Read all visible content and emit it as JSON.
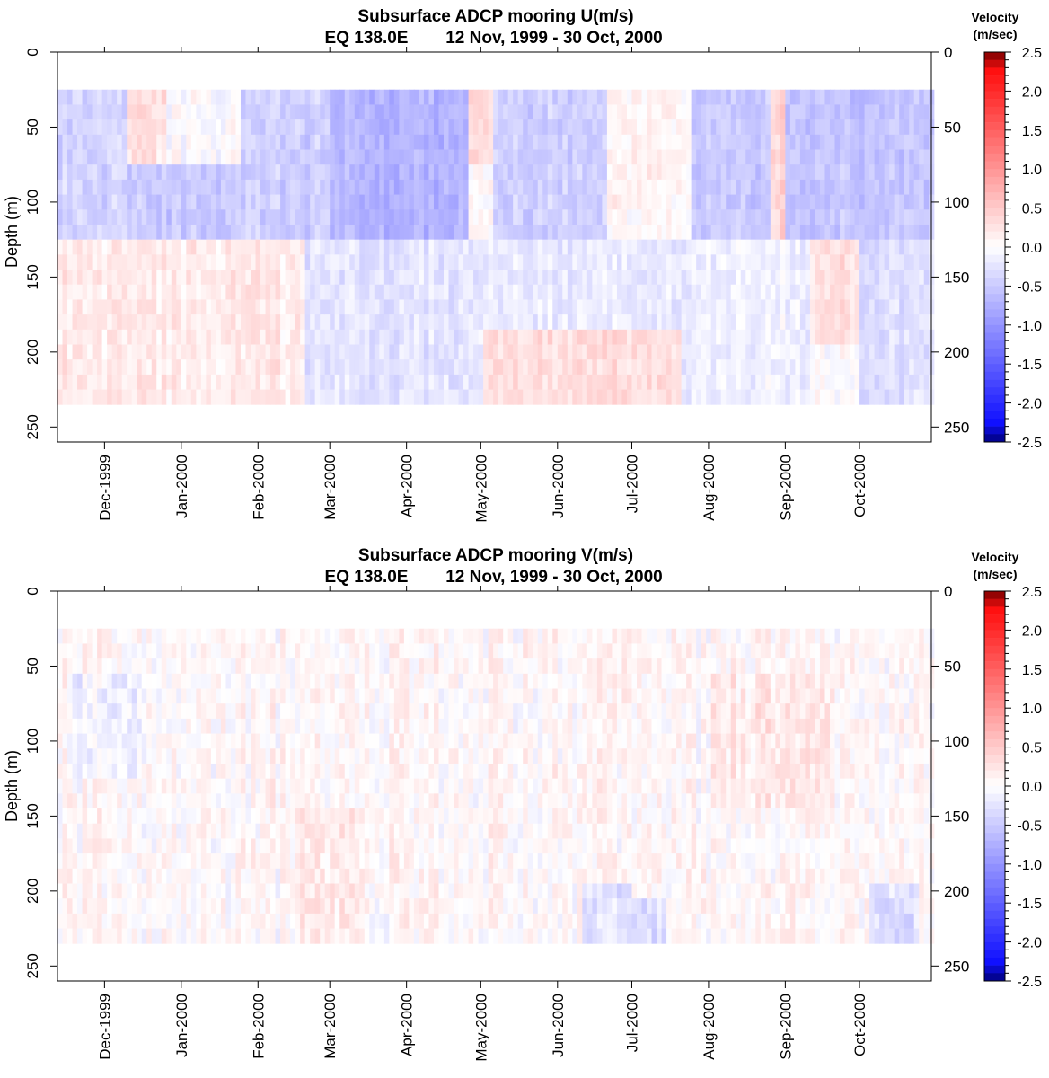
{
  "chart_data": [
    {
      "type": "heatmap",
      "title": "Subsurface ADCP mooring U(m/s)",
      "subtitle_location": "EQ 138.0E",
      "subtitle_period": "12 Nov, 1999 - 30 Oct, 2000",
      "ylabel": "Depth (m)",
      "y_reversed": true,
      "ylim": [
        0,
        260
      ],
      "y_ticks": [
        0,
        50,
        100,
        150,
        200,
        250
      ],
      "y_tick_labels": [
        "0",
        "50",
        "100",
        "150",
        "200",
        "250"
      ],
      "x_start": "1999-11-12",
      "x_end": "2000-10-30",
      "x_ticks": [
        "1999-12-01",
        "2000-01-01",
        "2000-02-01",
        "2000-03-01",
        "2000-04-01",
        "2000-05-01",
        "2000-06-01",
        "2000-07-01",
        "2000-08-01",
        "2000-09-01",
        "2000-10-01"
      ],
      "x_tick_labels": [
        "Dec-1999",
        "Jan-2000",
        "Feb-2000",
        "Mar-2000",
        "Apr-2000",
        "May-2000",
        "Jun-2000",
        "Jul-2000",
        "Aug-2000",
        "Sep-2000",
        "Oct-2000"
      ],
      "depth_levels": [
        30,
        40,
        50,
        60,
        70,
        80,
        90,
        100,
        110,
        120,
        130,
        140,
        150,
        160,
        170,
        180,
        190,
        200,
        210,
        220,
        230
      ],
      "data_top_depth": 25,
      "data_bottom_depth": 235,
      "colorbar": {
        "title": "Velocity",
        "units": "(m/sec)",
        "min": -2.5,
        "max": 2.5,
        "tick_values": [
          2.5,
          2.0,
          1.5,
          1.0,
          0.5,
          0.0,
          -0.5,
          -1.0,
          -1.5,
          -2.0,
          -2.5
        ],
        "tick_labels": [
          "2.5",
          "2.0",
          "1.5",
          "1.0",
          "0.5",
          "0.0",
          "-0.5",
          "-1.0",
          "-1.5",
          "-2.0",
          "-2.5"
        ]
      },
      "color_scale": {
        "negative_max": "#00007a",
        "negative": "#1010ff",
        "zero": "#ffffff",
        "positive": "#ff1010",
        "positive_max": "#7a0000"
      },
      "pattern": [
        {
          "t0": "1999-11-12",
          "t1": "1999-12-10",
          "d0": 25,
          "d1": 130,
          "value": -0.4
        },
        {
          "t0": "1999-12-10",
          "t1": "1999-12-25",
          "d0": 25,
          "d1": 75,
          "value": 0.25
        },
        {
          "t0": "1999-12-10",
          "t1": "2000-01-25",
          "d0": 75,
          "d1": 130,
          "value": -0.5
        },
        {
          "t0": "2000-01-25",
          "t1": "2000-03-01",
          "d0": 25,
          "d1": 130,
          "value": -0.45
        },
        {
          "t0": "2000-03-01",
          "t1": "2000-04-25",
          "d0": 25,
          "d1": 130,
          "value": -0.7
        },
        {
          "t0": "2000-04-25",
          "t1": "2000-05-05",
          "d0": 25,
          "d1": 80,
          "value": 0.3
        },
        {
          "t0": "2000-05-05",
          "t1": "2000-06-20",
          "d0": 25,
          "d1": 130,
          "value": -0.45
        },
        {
          "t0": "2000-06-20",
          "t1": "2000-07-25",
          "d0": 25,
          "d1": 110,
          "value": 0.1
        },
        {
          "t0": "2000-07-25",
          "t1": "2000-08-25",
          "d0": 25,
          "d1": 130,
          "value": -0.5
        },
        {
          "t0": "2000-08-25",
          "t1": "2000-08-31",
          "d0": 25,
          "d1": 130,
          "value": 0.35
        },
        {
          "t0": "2000-09-01",
          "t1": "2000-10-30",
          "d0": 25,
          "d1": 130,
          "value": -0.55
        },
        {
          "t0": "1999-11-12",
          "t1": "2000-02-20",
          "d0": 130,
          "d1": 235,
          "value": 0.2
        },
        {
          "t0": "2000-02-20",
          "t1": "2000-05-01",
          "d0": 130,
          "d1": 235,
          "value": -0.25
        },
        {
          "t0": "2000-05-01",
          "t1": "2000-07-20",
          "d0": 130,
          "d1": 185,
          "value": -0.2
        },
        {
          "t0": "2000-05-01",
          "t1": "2000-07-20",
          "d0": 185,
          "d1": 235,
          "value": 0.3
        },
        {
          "t0": "2000-07-20",
          "t1": "2000-09-10",
          "d0": 130,
          "d1": 235,
          "value": -0.15
        },
        {
          "t0": "2000-09-10",
          "t1": "2000-09-30",
          "d0": 130,
          "d1": 200,
          "value": 0.3
        },
        {
          "t0": "2000-09-30",
          "t1": "2000-10-30",
          "d0": 130,
          "d1": 235,
          "value": -0.3
        }
      ],
      "noise_amplitude": 0.15
    },
    {
      "type": "heatmap",
      "title": "Subsurface ADCP mooring V(m/s)",
      "subtitle_location": "EQ 138.0E",
      "subtitle_period": "12 Nov, 1999 - 30 Oct, 2000",
      "ylabel": "Depth (m)",
      "y_reversed": true,
      "ylim": [
        0,
        260
      ],
      "y_ticks": [
        0,
        50,
        100,
        150,
        200,
        250
      ],
      "y_tick_labels": [
        "0",
        "50",
        "100",
        "150",
        "200",
        "250"
      ],
      "x_start": "1999-11-12",
      "x_end": "2000-10-30",
      "x_ticks": [
        "1999-12-01",
        "2000-01-01",
        "2000-02-01",
        "2000-03-01",
        "2000-04-01",
        "2000-05-01",
        "2000-06-01",
        "2000-07-01",
        "2000-08-01",
        "2000-09-01",
        "2000-10-01"
      ],
      "x_tick_labels": [
        "Dec-1999",
        "Jan-2000",
        "Feb-2000",
        "Mar-2000",
        "Apr-2000",
        "May-2000",
        "Jun-2000",
        "Jul-2000",
        "Aug-2000",
        "Sep-2000",
        "Oct-2000"
      ],
      "depth_levels": [
        30,
        40,
        50,
        60,
        70,
        80,
        90,
        100,
        110,
        120,
        130,
        140,
        150,
        160,
        170,
        180,
        190,
        200,
        210,
        220,
        230
      ],
      "data_top_depth": 25,
      "data_bottom_depth": 235,
      "colorbar": {
        "title": "Velocity",
        "units": "(m/sec)",
        "min": -2.5,
        "max": 2.5,
        "tick_values": [
          2.5,
          2.0,
          1.5,
          1.0,
          0.5,
          0.0,
          -0.5,
          -1.0,
          -1.5,
          -2.0,
          -2.5
        ],
        "tick_labels": [
          "2.5",
          "2.0",
          "1.5",
          "1.0",
          "0.5",
          "0.0",
          "-0.5",
          "-1.0",
          "-1.5",
          "-2.0",
          "-2.5"
        ]
      },
      "color_scale": {
        "negative_max": "#00007a",
        "negative": "#1010ff",
        "zero": "#ffffff",
        "positive": "#ff1010",
        "positive_max": "#7a0000"
      },
      "pattern": [
        {
          "t0": "1999-11-12",
          "t1": "2000-10-30",
          "d0": 25,
          "d1": 235,
          "value": 0.05
        },
        {
          "t0": "1999-11-15",
          "t1": "1999-12-15",
          "d0": 60,
          "d1": 130,
          "value": -0.15
        },
        {
          "t0": "2000-02-15",
          "t1": "2000-03-15",
          "d0": 150,
          "d1": 235,
          "value": 0.2
        },
        {
          "t0": "2000-06-10",
          "t1": "2000-06-30",
          "d0": 200,
          "d1": 235,
          "value": -0.3
        },
        {
          "t0": "2000-07-01",
          "t1": "2000-07-15",
          "d0": 210,
          "d1": 235,
          "value": -0.35
        },
        {
          "t0": "2000-08-01",
          "t1": "2000-09-20",
          "d0": 60,
          "d1": 150,
          "value": 0.2
        },
        {
          "t0": "2000-10-05",
          "t1": "2000-10-25",
          "d0": 200,
          "d1": 235,
          "value": -0.3
        }
      ],
      "noise_amplitude": 0.18
    }
  ]
}
